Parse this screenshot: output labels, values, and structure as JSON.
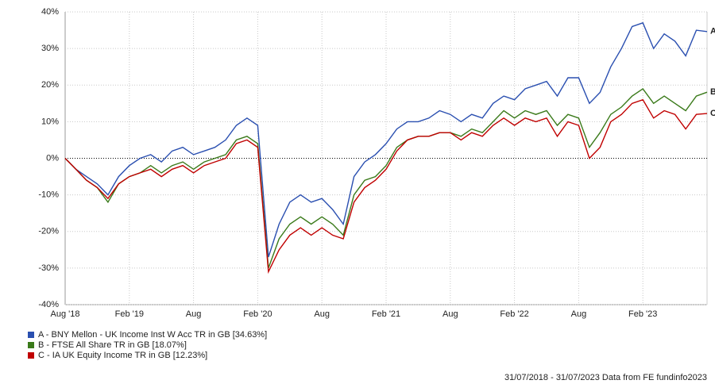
{
  "chart_data": {
    "type": "line",
    "categories": [
      "Aug '18",
      null,
      null,
      null,
      null,
      null,
      "Feb '19",
      null,
      null,
      null,
      null,
      null,
      "Aug",
      null,
      null,
      null,
      null,
      null,
      "Feb '20",
      null,
      null,
      null,
      null,
      null,
      "Aug",
      null,
      null,
      null,
      null,
      null,
      "Feb '21",
      null,
      null,
      null,
      null,
      null,
      "Aug",
      null,
      null,
      null,
      null,
      null,
      "Feb '22",
      null,
      null,
      null,
      null,
      null,
      "Aug",
      null,
      null,
      null,
      null,
      null,
      "Feb '23",
      null,
      null,
      null,
      null,
      null,
      null
    ],
    "series": [
      {
        "name": "A - BNY Mellon - UK Income Inst W Acc TR in GB [34.63%]",
        "marker": "A",
        "color": "#2a4fb0",
        "values": [
          0,
          -3,
          -5,
          -7,
          -10,
          -5,
          -2,
          0,
          1,
          -1,
          2,
          3,
          1,
          2,
          3,
          5,
          9,
          11,
          9,
          -27,
          -18,
          -12,
          -10,
          -12,
          -11,
          -14,
          -18,
          -5,
          -1,
          1,
          4,
          8,
          10,
          10,
          11,
          13,
          12,
          10,
          12,
          11,
          15,
          17,
          16,
          19,
          20,
          21,
          17,
          22,
          22,
          15,
          18,
          25,
          30,
          36,
          37,
          30,
          34,
          32,
          28,
          35,
          34.63
        ]
      },
      {
        "name": "B - FTSE All Share TR in GB [18.07%]",
        "marker": "B",
        "color": "#3a7a1a",
        "values": [
          0,
          -3,
          -6,
          -8,
          -12,
          -7,
          -5,
          -4,
          -2,
          -4,
          -2,
          -1,
          -3,
          -1,
          0,
          1,
          5,
          6,
          4,
          -30,
          -22,
          -18,
          -16,
          -18,
          -16,
          -18,
          -21,
          -10,
          -6,
          -5,
          -2,
          3,
          5,
          6,
          6,
          7,
          7,
          6,
          8,
          7,
          10,
          13,
          11,
          13,
          12,
          13,
          9,
          12,
          11,
          3,
          7,
          12,
          14,
          17,
          19,
          15,
          17,
          15,
          13,
          17,
          18.07
        ]
      },
      {
        "name": "C - IA UK Equity Income TR in GB [12.23%]",
        "marker": "C",
        "color": "#c00000",
        "values": [
          0,
          -3,
          -6,
          -8,
          -11,
          -7,
          -5,
          -4,
          -3,
          -5,
          -3,
          -2,
          -4,
          -2,
          -1,
          0,
          4,
          5,
          3,
          -31,
          -25,
          -21,
          -19,
          -21,
          -19,
          -21,
          -22,
          -12,
          -8,
          -6,
          -3,
          2,
          5,
          6,
          6,
          7,
          7,
          5,
          7,
          6,
          9,
          11,
          9,
          11,
          10,
          11,
          6,
          10,
          9,
          0,
          3,
          10,
          12,
          15,
          16,
          11,
          13,
          12,
          8,
          12,
          12.23
        ]
      }
    ],
    "ylim": [
      -40,
      40
    ],
    "yticks": [
      {
        "value": -40,
        "label": "-40%"
      },
      {
        "value": -30,
        "label": "-30%"
      },
      {
        "value": -20,
        "label": "-20%"
      },
      {
        "value": -10,
        "label": "-10%"
      },
      {
        "value": 0,
        "label": "0%"
      },
      {
        "value": 10,
        "label": "10%"
      },
      {
        "value": 20,
        "label": "20%"
      },
      {
        "value": 30,
        "label": "30%"
      },
      {
        "value": 40,
        "label": "40%"
      }
    ],
    "grid": true,
    "legend": "bottom-left",
    "footnote": "31/07/2018 - 31/07/2023 Data from FE fundinfo2023"
  }
}
